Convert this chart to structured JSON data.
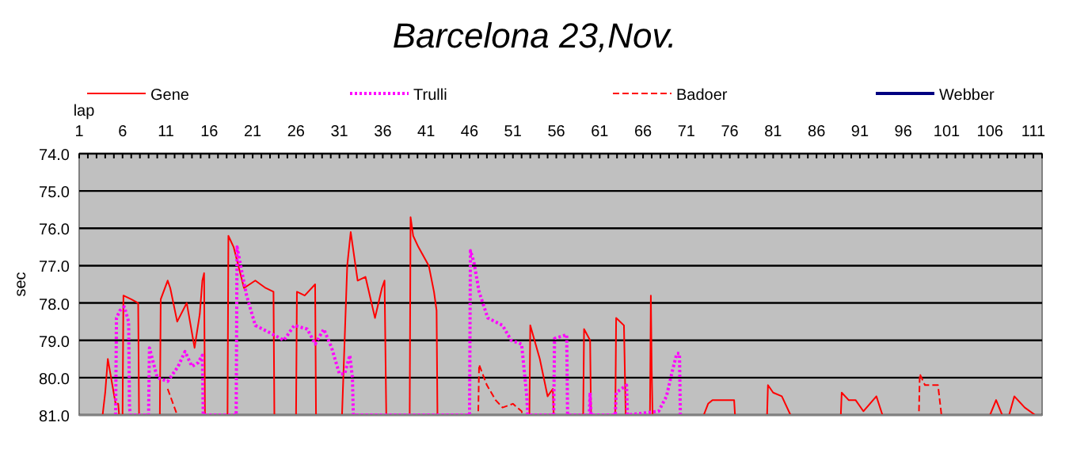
{
  "chart_data": {
    "type": "line",
    "title": "Barcelona 23,Nov.",
    "xlabel": "lap",
    "ylabel": "sec",
    "legend": "top",
    "grid": "y",
    "marker": "none",
    "xlim": [
      1,
      112
    ],
    "ylim": [
      81,
      74
    ],
    "yticks": [
      {
        "value": 74,
        "label": "74.0"
      },
      {
        "value": 75,
        "label": "75.0"
      },
      {
        "value": 76,
        "label": "76.0"
      },
      {
        "value": 77,
        "label": "77.0"
      },
      {
        "value": 78,
        "label": "78.0"
      },
      {
        "value": 79,
        "label": "79.0"
      },
      {
        "value": 80,
        "label": "80.0"
      },
      {
        "value": 81,
        "label": "81.0"
      }
    ],
    "xticks": [
      1,
      {
        "value": 2,
        "label": null
      },
      {
        "value": 3,
        "label": null
      },
      {
        "value": 4,
        "label": null
      },
      {
        "value": 5,
        "label": null
      },
      6,
      {
        "value": 7,
        "label": null
      },
      {
        "value": 8,
        "label": null
      },
      {
        "value": 9,
        "label": null
      },
      {
        "value": 10,
        "label": null
      },
      11,
      {
        "value": 12,
        "label": null
      },
      {
        "value": 13,
        "label": null
      },
      {
        "value": 14,
        "label": null
      },
      {
        "value": 15,
        "label": null
      },
      16,
      {
        "value": 17,
        "label": null
      },
      {
        "value": 18,
        "label": null
      },
      {
        "value": 19,
        "label": null
      },
      {
        "value": 20,
        "label": null
      },
      21,
      {
        "value": 22,
        "label": null
      },
      {
        "value": 23,
        "label": null
      },
      {
        "value": 24,
        "label": null
      },
      {
        "value": 25,
        "label": null
      },
      26,
      {
        "value": 27,
        "label": null
      },
      {
        "value": 28,
        "label": null
      },
      {
        "value": 29,
        "label": null
      },
      {
        "value": 30,
        "label": null
      },
      31,
      {
        "value": 32,
        "label": null
      },
      {
        "value": 33,
        "label": null
      },
      {
        "value": 34,
        "label": null
      },
      {
        "value": 35,
        "label": null
      },
      36,
      {
        "value": 37,
        "label": null
      },
      {
        "value": 38,
        "label": null
      },
      {
        "value": 39,
        "label": null
      },
      {
        "value": 40,
        "label": null
      },
      41,
      {
        "value": 42,
        "label": null
      },
      {
        "value": 43,
        "label": null
      },
      {
        "value": 44,
        "label": null
      },
      {
        "value": 45,
        "label": null
      },
      46,
      {
        "value": 47,
        "label": null
      },
      {
        "value": 48,
        "label": null
      },
      {
        "value": 49,
        "label": null
      },
      {
        "value": 50,
        "label": null
      },
      51,
      {
        "value": 52,
        "label": null
      },
      {
        "value": 53,
        "label": null
      },
      {
        "value": 54,
        "label": null
      },
      {
        "value": 55,
        "label": null
      },
      56,
      {
        "value": 57,
        "label": null
      },
      {
        "value": 58,
        "label": null
      },
      {
        "value": 59,
        "label": null
      },
      {
        "value": 60,
        "label": null
      },
      61,
      {
        "value": 62,
        "label": null
      },
      {
        "value": 63,
        "label": null
      },
      {
        "value": 64,
        "label": null
      },
      {
        "value": 65,
        "label": null
      },
      66,
      {
        "value": 67,
        "label": null
      },
      {
        "value": 68,
        "label": null
      },
      {
        "value": 69,
        "label": null
      },
      {
        "value": 70,
        "label": null
      },
      71,
      {
        "value": 72,
        "label": null
      },
      {
        "value": 73,
        "label": null
      },
      {
        "value": 74,
        "label": null
      },
      {
        "value": 75,
        "label": null
      },
      76,
      {
        "value": 77,
        "label": null
      },
      {
        "value": 78,
        "label": null
      },
      {
        "value": 79,
        "label": null
      },
      {
        "value": 80,
        "label": null
      },
      81,
      {
        "value": 82,
        "label": null
      },
      {
        "value": 83,
        "label": null
      },
      {
        "value": 84,
        "label": null
      },
      {
        "value": 85,
        "label": null
      },
      86,
      {
        "value": 87,
        "label": null
      },
      {
        "value": 88,
        "label": null
      },
      {
        "value": 89,
        "label": null
      },
      {
        "value": 90,
        "label": null
      },
      91,
      {
        "value": 92,
        "label": null
      },
      {
        "value": 93,
        "label": null
      },
      {
        "value": 94,
        "label": null
      },
      {
        "value": 95,
        "label": null
      },
      96,
      {
        "value": 97,
        "label": null
      },
      {
        "value": 98,
        "label": null
      },
      {
        "value": 99,
        "label": null
      },
      {
        "value": 100,
        "label": null
      },
      101,
      {
        "value": 102,
        "label": null
      },
      {
        "value": 103,
        "label": null
      },
      {
        "value": 104,
        "label": null
      },
      {
        "value": 105,
        "label": null
      },
      106,
      {
        "value": 107,
        "label": null
      },
      {
        "value": 108,
        "label": null
      },
      {
        "value": 109,
        "label": null
      },
      {
        "value": 110,
        "label": null
      },
      111,
      {
        "value": 112,
        "label": null
      }
    ],
    "series": [
      {
        "name": "Gene",
        "color": "#ff0000",
        "line_style": "solid",
        "x": [
          3.7,
          4,
          4.3,
          4.6,
          5.2,
          5.5,
          5.6,
          6,
          6.1,
          7,
          7.8,
          7.9,
          10.3,
          10.4,
          11.2,
          11.5,
          12.3,
          13.4,
          14.3,
          14.9,
          15.2,
          15.4,
          15.5,
          18.1,
          18.2,
          18.8,
          20,
          21.3,
          22.5,
          23.4,
          23.5,
          26,
          26.1,
          27,
          28.2,
          28.3,
          31.3,
          31.9,
          32.3,
          33.1,
          34,
          35.1,
          35.9,
          36.2,
          36.4,
          39.1,
          39.2,
          39.5,
          40.1,
          41.3,
          41.9,
          42.2,
          42.3,
          52.9,
          53,
          54.1,
          55,
          55.6,
          55.7,
          59.1,
          59.2,
          59.9,
          60,
          62.8,
          62.9,
          63.8,
          64,
          66.8,
          66.9,
          67,
          67.1,
          73,
          73.5,
          74,
          76.5,
          76.6,
          80.3,
          80.4,
          81,
          82,
          83,
          88.8,
          88.9,
          89.7,
          90.5,
          91.4,
          92.9,
          93.6,
          106,
          106.7,
          107.4,
          108.2,
          108.8,
          110,
          111.2
        ],
        "values": [
          81,
          80.4,
          79.5,
          79.9,
          80.7,
          80.7,
          81,
          81,
          77.8,
          77.9,
          78.0,
          81,
          81,
          77.9,
          77.4,
          77.6,
          78.5,
          78.0,
          79.2,
          78.3,
          77.4,
          77.2,
          81,
          81,
          76.2,
          76.5,
          77.6,
          77.4,
          77.6,
          77.7,
          81,
          81,
          77.7,
          77.8,
          77.5,
          81,
          81,
          77.0,
          76.1,
          77.4,
          77.3,
          78.4,
          77.6,
          77.4,
          81,
          81,
          75.7,
          76.2,
          76.5,
          77.0,
          77.7,
          78.2,
          81,
          81,
          78.6,
          79.5,
          80.5,
          80.3,
          81,
          81,
          78.7,
          79.0,
          81,
          81,
          78.4,
          78.6,
          81,
          81,
          77.8,
          79.8,
          81,
          81,
          80.7,
          80.6,
          80.6,
          81,
          81,
          80.2,
          80.4,
          80.5,
          81,
          81,
          80.4,
          80.6,
          80.6,
          80.9,
          80.5,
          81,
          81,
          80.6,
          81,
          81,
          80.5,
          80.8,
          81
        ]
      },
      {
        "name": "Trulli",
        "color": "#ff00ff",
        "line_style": "dotted",
        "x": [
          5.2,
          5.3,
          5.7,
          6.2,
          6.7,
          6.8,
          6.9,
          9,
          9.1,
          10,
          11.2,
          12.4,
          13.2,
          14,
          14.7,
          15.2,
          15.3,
          19.1,
          19.2,
          19.7,
          20.3,
          21.3,
          23,
          24.6,
          25.8,
          27.3,
          28.2,
          29.2,
          30.1,
          31,
          31.6,
          32.2,
          32.5,
          32.6,
          46,
          46.1,
          46.5,
          47.1,
          48.1,
          49.8,
          50.8,
          52,
          52.6,
          52.7,
          55.7,
          55.8,
          57.2,
          57.3,
          59.8,
          59.9,
          60,
          62.8,
          62.9,
          64.1,
          64.2,
          67.8,
          68.7,
          69.4,
          69.9,
          70.2,
          70.3
        ],
        "values": [
          81,
          78.4,
          78.2,
          78.1,
          78.5,
          80.8,
          81,
          81,
          79.2,
          80.0,
          80.1,
          79.7,
          79.3,
          79.7,
          79.6,
          79.4,
          81,
          81,
          76.5,
          77.1,
          77.8,
          78.6,
          78.8,
          79.0,
          78.6,
          78.7,
          79.1,
          78.7,
          79.2,
          79.9,
          79.9,
          79.4,
          80.0,
          81,
          81,
          76.6,
          76.9,
          77.7,
          78.4,
          78.6,
          79.0,
          79.1,
          80.5,
          81,
          81,
          78.95,
          78.85,
          81,
          81,
          80.4,
          81,
          81,
          80.4,
          80.2,
          81,
          80.9,
          80.5,
          79.8,
          79.35,
          79.35,
          81
        ]
      },
      {
        "name": "Badoer",
        "color": "#ff0000",
        "line_style": "dashed",
        "x": [
          11.2,
          12.3,
          47,
          47.1,
          48,
          49,
          49.8,
          51,
          52,
          52.1,
          97.8,
          97.9,
          98.5,
          100,
          100.4
        ],
        "values": [
          80.3,
          81,
          81,
          79.65,
          80.2,
          80.6,
          80.8,
          80.7,
          80.9,
          81,
          81,
          79.9,
          80.2,
          80.2,
          81
        ]
      },
      {
        "name": "Webber",
        "color": "#000080",
        "line_style": "solid"
      }
    ]
  }
}
